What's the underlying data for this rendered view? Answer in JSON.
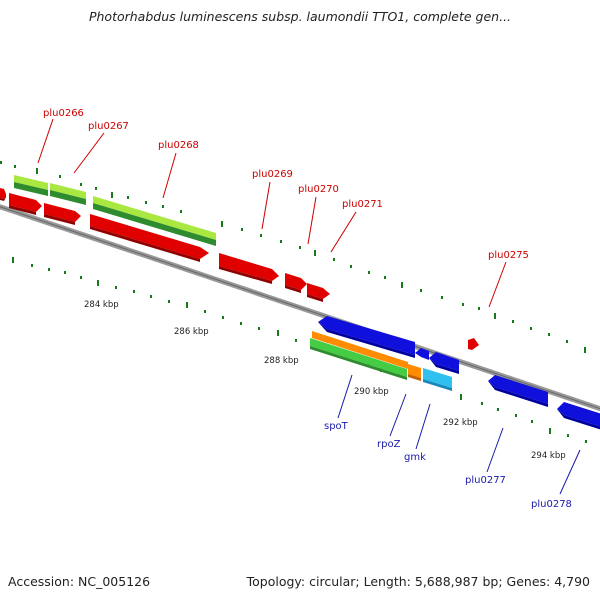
{
  "title": "Photorhabdus luminescens subsp. laumondii TTO1, complete gen...",
  "accession": "Accession: NC_005126",
  "summary": "Topology: circular; Length: 5,688,987 bp; Genes: 4,790",
  "genes_forward": [
    "plu0266",
    "plu0267",
    "plu0268",
    "plu0269",
    "plu0270",
    "plu0271",
    "plu0275"
  ],
  "genes_reverse": [
    "spoT",
    "rpoZ",
    "gmk",
    "plu0277",
    "plu0278"
  ],
  "scale_labels": [
    "284 kbp",
    "286 kbp",
    "288 kbp",
    "290 kbp",
    "292 kbp",
    "294 kbp"
  ],
  "colors": {
    "forward_gene": "#e00000",
    "reverse_gene": "#1010dd",
    "light_green": "#a8e840",
    "dark_green": "#2e8b2e",
    "orange": "#ff8c00",
    "cyan": "#30c0f0",
    "backbone": "#888888",
    "tick": "#1a7a1a"
  }
}
